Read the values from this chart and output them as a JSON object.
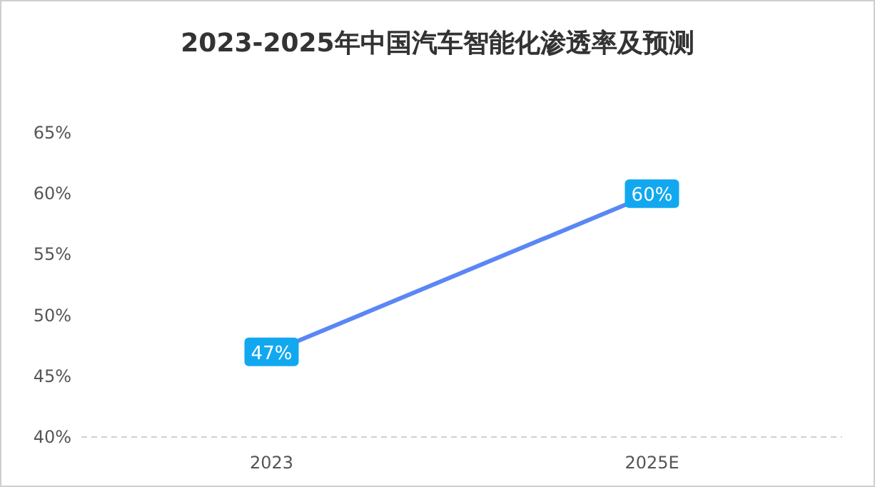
{
  "chart_data": {
    "type": "line",
    "title": "2023-2025年中国汽车智能化渗透率及预测",
    "categories": [
      "2023",
      "2025E"
    ],
    "values": [
      47,
      60
    ],
    "value_labels": [
      "47%",
      "60%"
    ],
    "color": "#5b86f5",
    "marker": "square",
    "ylim": [
      40,
      65
    ],
    "yticks": [
      {
        "value": 40,
        "label": "40%"
      },
      {
        "value": 45,
        "label": "45%"
      },
      {
        "value": 50,
        "label": "50%"
      },
      {
        "value": 55,
        "label": "55%"
      },
      {
        "value": 60,
        "label": "60%"
      },
      {
        "value": 65,
        "label": "65%"
      }
    ]
  }
}
